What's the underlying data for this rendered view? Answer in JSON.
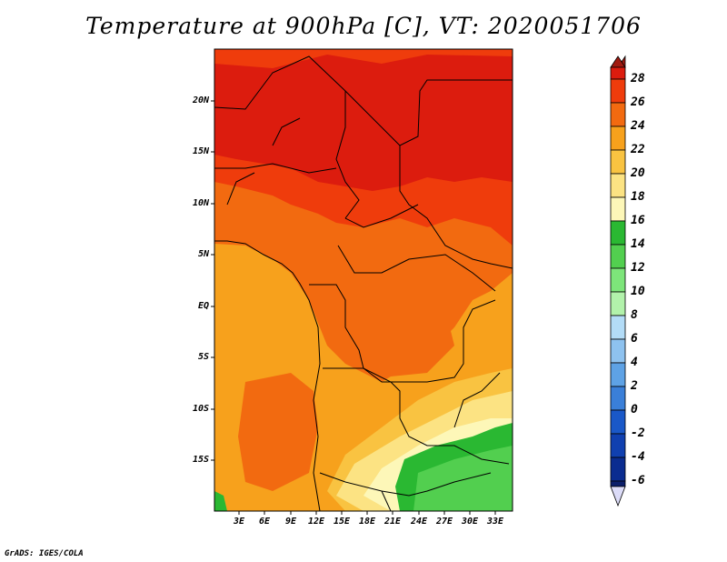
{
  "title": "Temperature at 900hPa [C], VT: 2020051706",
  "footer": "GrADS: IGES/COLA",
  "lat_labels": [
    "20N",
    "15N",
    "10N",
    "5N",
    "EQ",
    "5S",
    "10S",
    "15S"
  ],
  "lon_labels": [
    "3E",
    "6E",
    "9E",
    "12E",
    "15E",
    "18E",
    "21E",
    "24E",
    "27E",
    "30E",
    "33E"
  ],
  "colorbar": {
    "labels": [
      "28",
      "26",
      "24",
      "22",
      "20",
      "18",
      "16",
      "14",
      "12",
      "10",
      "8",
      "6",
      "4",
      "2",
      "0",
      "-2",
      "-4",
      "-6"
    ],
    "colors_top_to_bottom": [
      "#a01a10",
      "#dc1c0e",
      "#ef3c0c",
      "#f26a10",
      "#f7a11c",
      "#f9c341",
      "#fce383",
      "#fdf7b8",
      "#2ab832",
      "#52cf4f",
      "#7de57a",
      "#b2f2ab",
      "#b3dcf7",
      "#8ec2ef",
      "#5ea2e5",
      "#3a7fd8",
      "#1a58c8",
      "#1040b0",
      "#0a2c90",
      "#0a1e6a"
    ]
  },
  "map": {
    "palette": {
      "t28": "#dc1c0e",
      "t26": "#ef3c0c",
      "t24": "#f26a10",
      "t22": "#f7a11c",
      "t20": "#f9c341",
      "t18": "#fce383",
      "t16": "#fdf7b8",
      "t14": "#2ab832",
      "t12": "#52cf4f",
      "t10": "#7de57a"
    }
  }
}
